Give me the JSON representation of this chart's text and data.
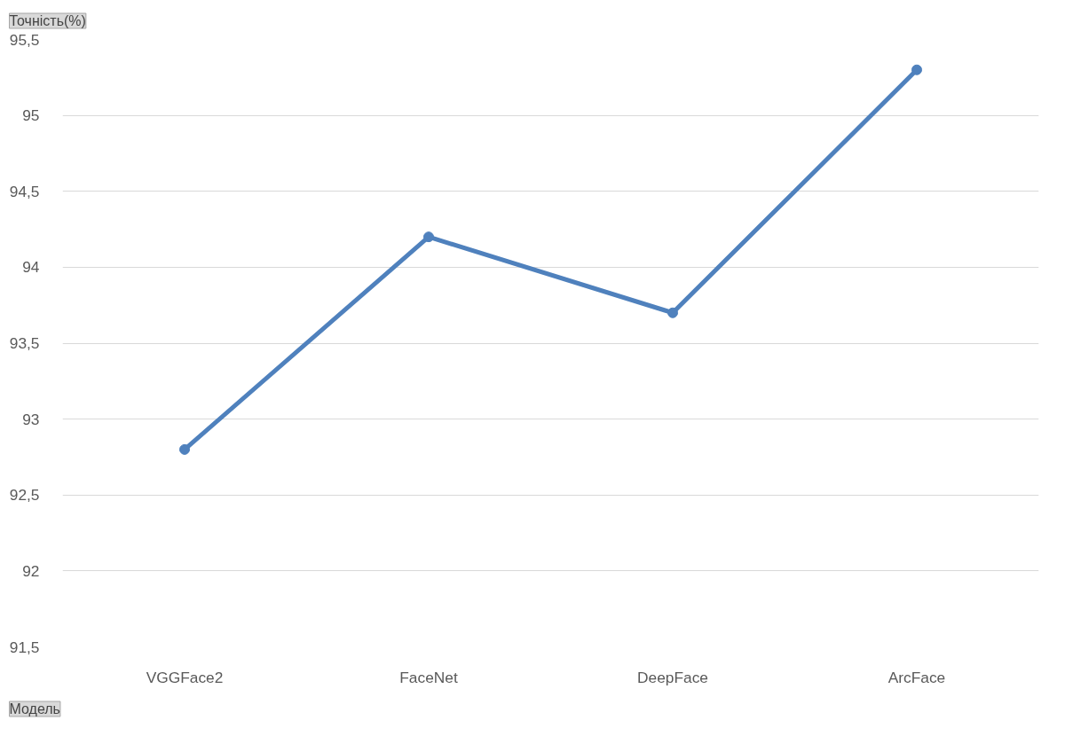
{
  "chart_data": {
    "type": "line",
    "ylabel": "Точність(%)",
    "xlabel": "Модель",
    "categories": [
      "VGGFace2",
      "FaceNet",
      "DeepFace",
      "ArcFace"
    ],
    "series": [
      {
        "color": "#4f81bd",
        "values": [
          92.8,
          94.2,
          93.7,
          95.3
        ]
      }
    ],
    "ylim": [
      91.5,
      95.5
    ],
    "yticks": [
      {
        "value": 91.5,
        "label": "91,5"
      },
      92,
      {
        "value": 92.5,
        "label": "92,5"
      },
      93,
      {
        "value": 93.5,
        "label": "93,5"
      },
      94,
      {
        "value": 94.5,
        "label": "94,5"
      },
      95,
      {
        "value": 95.5,
        "label": "95,5"
      }
    ],
    "grid": "y",
    "marker": "circle",
    "line_style": "solid"
  }
}
